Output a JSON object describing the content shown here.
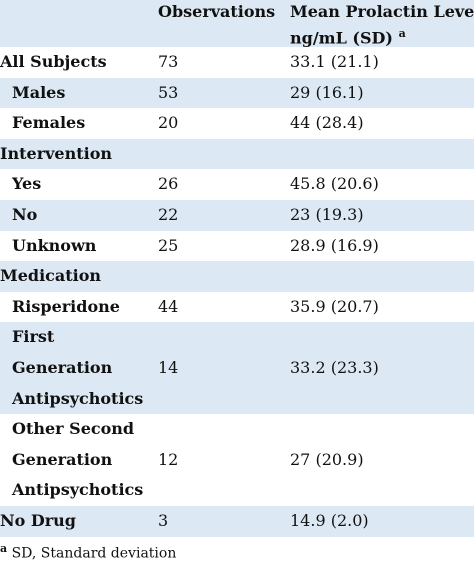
{
  "table": {
    "header": {
      "observations": "Observations",
      "mean_line1": "Mean Prolactin Level ,",
      "mean_line2": "ng/mL (SD)",
      "note_mark": "a"
    },
    "groups": [
      {
        "label": [
          "All Subjects"
        ],
        "observations": "73",
        "mean": "33.1 (21.1)",
        "children": [
          {
            "label": [
              "Males"
            ],
            "observations": "53",
            "mean": "29 (16.1)"
          },
          {
            "label": [
              "Females"
            ],
            "observations": "20",
            "mean": "44 (28.4)"
          }
        ]
      },
      {
        "label": [
          "Intervention"
        ],
        "children": [
          {
            "label": [
              "Yes"
            ],
            "observations": "26",
            "mean": "45.8 (20.6)"
          },
          {
            "label": [
              "No"
            ],
            "observations": "22",
            "mean": "23 (19.3)"
          },
          {
            "label": [
              "Unknown"
            ],
            "observations": "25",
            "mean": "28.9 (16.9)"
          }
        ]
      },
      {
        "label": [
          "Medication"
        ],
        "children": [
          {
            "label": [
              "Risperidone"
            ],
            "observations": "44",
            "mean": "35.9 (20.7)"
          },
          {
            "label": [
              "First",
              "Generation",
              "Antipsychotics"
            ],
            "observations": "14",
            "mean": "33.2 (23.3)"
          },
          {
            "label": [
              "Other Second",
              "Generation",
              "Antipsychotics"
            ],
            "observations": "12",
            "mean": "27 (20.9)"
          }
        ]
      },
      {
        "label": [
          "No Drug"
        ],
        "observations": "3",
        "mean": "14.9 (2.0)"
      }
    ]
  },
  "footnote": {
    "mark": "a",
    "text": "SD, Standard deviation"
  }
}
